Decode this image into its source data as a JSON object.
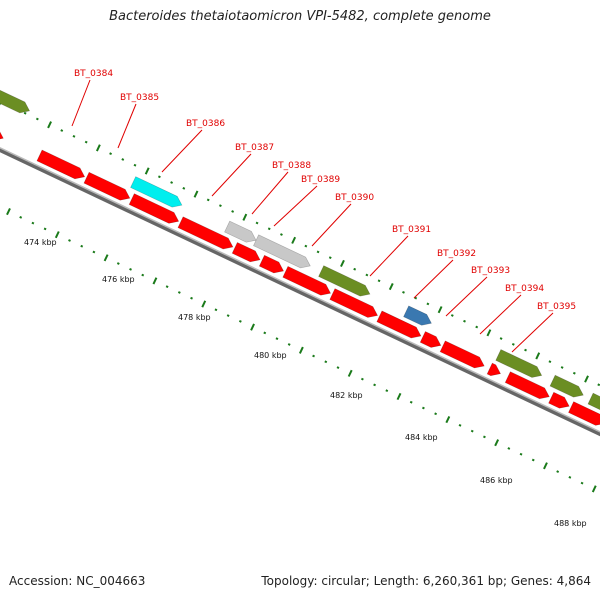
{
  "title": "Bacteroides thetaiotaomicron VPI-5482, complete genome",
  "footer": {
    "accession": "Accession: NC_004663",
    "summary": "Topology: circular; Length: 6,260,361 bp; Genes: 4,864"
  },
  "colors": {
    "red": "#ff0000",
    "cyan": "#00eeee",
    "gray": "#c8c8c8",
    "olive": "#6b8e23",
    "blue": "#3a78b0",
    "label": "#e00000",
    "tick": "#1a7a1a",
    "backbone": "#888888"
  },
  "gene_labels": [
    "BT_0384",
    "BT_0385",
    "BT_0386",
    "BT_0387",
    "BT_0388",
    "BT_0389",
    "BT_0390",
    "BT_0391",
    "BT_0392",
    "BT_0393",
    "BT_0394",
    "BT_0395"
  ],
  "scale_labels": [
    "474 kbp",
    "476 kbp",
    "478 kbp",
    "480 kbp",
    "482 kbp",
    "484 kbp",
    "486 kbp",
    "488 kbp"
  ]
}
